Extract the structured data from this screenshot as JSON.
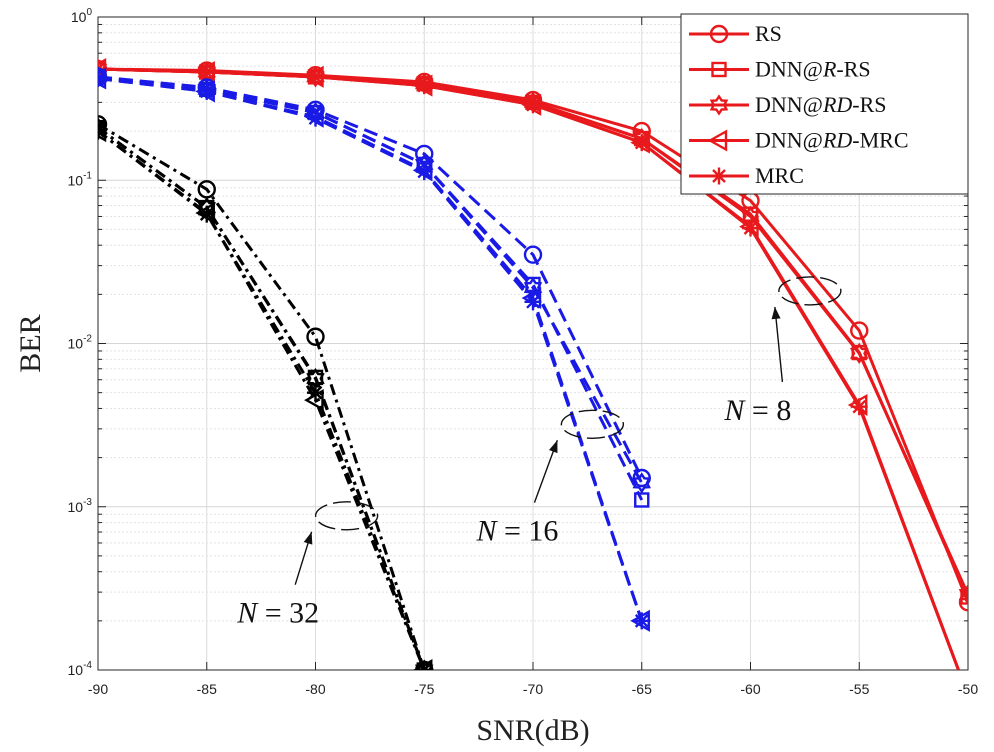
{
  "chart_data": {
    "type": "line",
    "title": "",
    "xlabel": "SNR(dB)",
    "ylabel": "BER",
    "yscale": "log",
    "xlim": [
      -90,
      -50
    ],
    "ylim": [
      0.0001,
      1
    ],
    "grid": true,
    "legend_position": "top-right",
    "x_ticks": [
      -90,
      -85,
      -80,
      -75,
      -70,
      -65,
      -60,
      -55,
      -50
    ],
    "x_tick_labels": [
      "-90",
      "-85",
      "-80",
      "-75",
      "-70",
      "-65",
      "-60",
      "-55",
      "-50"
    ],
    "y_ticks": [
      {
        "value": 1,
        "base": "10",
        "exp": "0"
      },
      {
        "value": 0.1,
        "base": "10",
        "exp": "-1"
      },
      {
        "value": 0.01,
        "base": "10",
        "exp": "-2"
      },
      {
        "value": 0.001,
        "base": "10",
        "exp": "-3"
      },
      {
        "value": 0.0001,
        "base": "10",
        "exp": "-4"
      }
    ],
    "legend": [
      {
        "label": "RS",
        "marker": "circle"
      },
      {
        "label": "DNN@R-RS",
        "prefix": "DNN@",
        "italic": "R",
        "suffix": "-RS",
        "marker": "square"
      },
      {
        "label": "DNN@RD-RS",
        "prefix": "DNN@",
        "italic": "RD",
        "suffix": "-RS",
        "marker": "hexagram"
      },
      {
        "label": "DNN@RD-MRC",
        "prefix": "DNN@",
        "italic": "RD",
        "suffix": "-MRC",
        "marker": "triangle-left"
      },
      {
        "label": "MRC",
        "marker": "asterisk"
      }
    ],
    "groups": [
      {
        "name": "N = 8",
        "color": "#e8191c",
        "dash": "solid",
        "series": [
          {
            "name": "RS",
            "marker": "circle",
            "x": [
              -90,
              -85,
              -80,
              -75,
              -70,
              -65,
              -60,
              -55,
              -50
            ],
            "y": [
              0.48,
              0.47,
              0.44,
              0.4,
              0.31,
              0.2,
              0.075,
              0.012,
              0.00026
            ]
          },
          {
            "name": "DNN@R-RS",
            "marker": "square",
            "x": [
              -90,
              -85,
              -80,
              -75,
              -70,
              -65,
              -60,
              -55,
              -50
            ],
            "y": [
              0.48,
              0.46,
              0.43,
              0.39,
              0.3,
              0.18,
              0.062,
              0.0088,
              0.00028
            ]
          },
          {
            "name": "DNN@RD-RS",
            "marker": "hexagram",
            "x": [
              -90,
              -85,
              -80,
              -75,
              -70,
              -65,
              -60,
              -55,
              -50
            ],
            "y": [
              0.48,
              0.46,
              0.43,
              0.39,
              0.3,
              0.18,
              0.06,
              0.0087,
              0.00029
            ]
          },
          {
            "name": "DNN@RD-MRC",
            "marker": "triangle-left",
            "x": [
              -90,
              -85,
              -80,
              -75,
              -70,
              -65,
              -60,
              -55,
              -50
            ],
            "y": [
              0.48,
              0.46,
              0.43,
              0.38,
              0.29,
              0.17,
              0.052,
              0.0042,
              7e-05
            ]
          },
          {
            "name": "MRC",
            "marker": "asterisk",
            "x": [
              -90,
              -85,
              -80,
              -75,
              -70,
              -65,
              -60,
              -55,
              -50
            ],
            "y": [
              0.48,
              0.46,
              0.43,
              0.38,
              0.29,
              0.17,
              0.051,
              0.0041,
              7e-05
            ]
          }
        ]
      },
      {
        "name": "N = 16",
        "color": "#1a1ae6",
        "dash": "dashed",
        "series": [
          {
            "name": "RS",
            "marker": "circle",
            "x": [
              -90,
              -85,
              -80,
              -75,
              -70,
              -65
            ],
            "y": [
              0.43,
              0.37,
              0.27,
              0.145,
              0.035,
              0.0015
            ]
          },
          {
            "name": "DNN@R-RS",
            "marker": "square",
            "x": [
              -90,
              -85,
              -80,
              -75,
              -70,
              -65
            ],
            "y": [
              0.43,
              0.36,
              0.26,
              0.125,
              0.023,
              0.0011
            ]
          },
          {
            "name": "DNN@RD-RS",
            "marker": "hexagram",
            "x": [
              -90,
              -85,
              -80,
              -75,
              -70,
              -65
            ],
            "y": [
              0.43,
              0.36,
              0.26,
              0.125,
              0.022,
              0.0014
            ]
          },
          {
            "name": "DNN@RD-MRC",
            "marker": "triangle-left",
            "x": [
              -90,
              -85,
              -80,
              -75,
              -70,
              -65
            ],
            "y": [
              0.42,
              0.35,
              0.245,
              0.115,
              0.019,
              0.0002
            ]
          },
          {
            "name": "MRC",
            "marker": "asterisk",
            "x": [
              -90,
              -85,
              -80,
              -75,
              -70,
              -65
            ],
            "y": [
              0.42,
              0.35,
              0.24,
              0.113,
              0.018,
              0.0002
            ]
          }
        ]
      },
      {
        "name": "N = 32",
        "color": "#000000",
        "dash": "dashdot",
        "series": [
          {
            "name": "RS",
            "marker": "circle",
            "x": [
              -90,
              -85,
              -80,
              -75
            ],
            "y": [
              0.22,
              0.088,
              0.011,
              0.0001
            ]
          },
          {
            "name": "DNN@R-RS",
            "marker": "square",
            "x": [
              -90,
              -85,
              -80,
              -75
            ],
            "y": [
              0.21,
              0.068,
              0.0062,
              0.0001
            ]
          },
          {
            "name": "DNN@RD-RS",
            "marker": "hexagram",
            "x": [
              -90,
              -85,
              -80,
              -75
            ],
            "y": [
              0.21,
              0.068,
              0.0061,
              0.0001
            ]
          },
          {
            "name": "DNN@RD-MRC",
            "marker": "triangle-left",
            "x": [
              -90,
              -85,
              -80,
              -75
            ],
            "y": [
              0.2,
              0.063,
              0.0045,
              0.0001
            ]
          },
          {
            "name": "MRC",
            "marker": "asterisk",
            "x": [
              -90,
              -85,
              -80,
              -75
            ],
            "y": [
              0.2,
              0.062,
              0.005,
              0.0001
            ]
          }
        ]
      }
    ],
    "annotations": [
      {
        "prefix": "N",
        "text": "N = 8",
        "value": "8",
        "target_x": -57.5,
        "target_y": 0.021,
        "label_x": -61.2,
        "label_y": 0.0034
      },
      {
        "prefix": "N",
        "text": "N = 16",
        "value": "16",
        "target_x": -67.5,
        "target_y": 0.0032,
        "label_x": -72.6,
        "label_y": 0.00062
      },
      {
        "prefix": "N",
        "text": "N = 32",
        "value": "32",
        "target_x": -78.8,
        "target_y": 0.00088,
        "label_x": -83.6,
        "label_y": 0.000195
      }
    ]
  }
}
